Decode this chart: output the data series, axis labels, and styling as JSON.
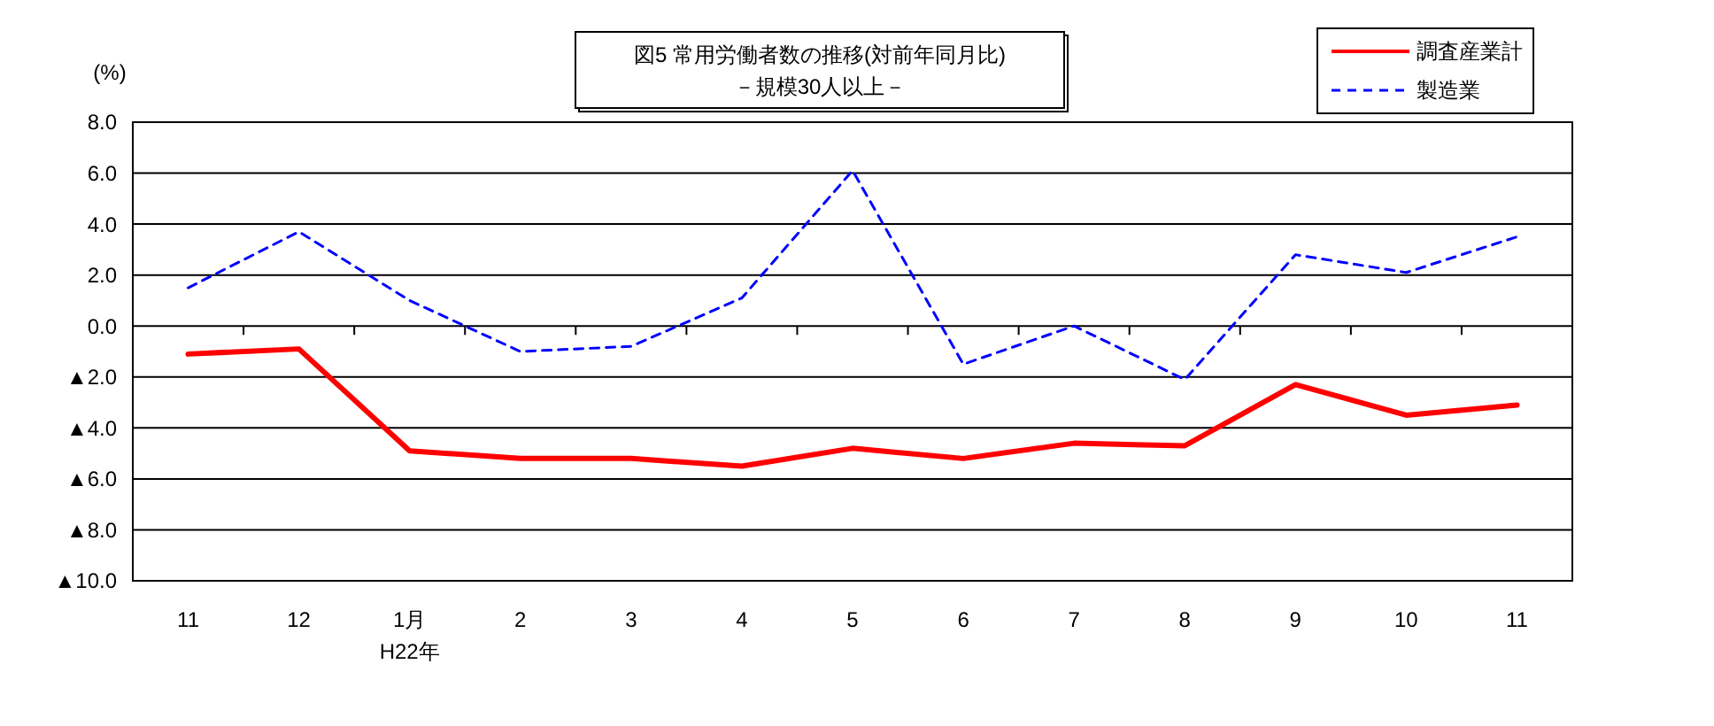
{
  "chart_data": {
    "type": "line",
    "title": "図5 常用労働者数の推移(対前年同月比)",
    "subtitle": "－規模30人以上－",
    "ylabel": "(%)",
    "categories": [
      "11",
      "12",
      "1月\nH22年",
      "2",
      "3",
      "4",
      "5",
      "6",
      "7",
      "8",
      "9",
      "10",
      "11"
    ],
    "series": [
      {
        "name": "調査産業計",
        "color": "#ff0000",
        "line_style": "solid",
        "values": [
          -1.1,
          -0.9,
          -4.9,
          -5.2,
          -5.2,
          -5.5,
          -4.8,
          -5.2,
          -4.6,
          -4.7,
          -2.3,
          -3.5,
          -3.1
        ]
      },
      {
        "name": "製造業",
        "color": "#0000ff",
        "line_style": "dashed",
        "values": [
          1.5,
          3.7,
          1.0,
          -1.0,
          -0.8,
          1.1,
          6.1,
          -1.5,
          0.0,
          -2.1,
          2.8,
          2.1,
          3.5
        ]
      }
    ],
    "ylim": [
      -10,
      8
    ],
    "yticks": [
      {
        "value": -10,
        "label": "▲10.0"
      },
      {
        "value": -8,
        "label": "▲8.0"
      },
      {
        "value": -6,
        "label": "▲6.0"
      },
      {
        "value": -4,
        "label": "▲4.0"
      },
      {
        "value": -2,
        "label": "▲2.0"
      },
      {
        "value": 0,
        "label": "0.0"
      },
      {
        "value": 2,
        "label": "2.0"
      },
      {
        "value": 4,
        "label": "4.0"
      },
      {
        "value": 6,
        "label": "6.0"
      },
      {
        "value": 8,
        "label": "8.0"
      }
    ],
    "grid": "y",
    "legend": "top right",
    "marker": "none"
  }
}
